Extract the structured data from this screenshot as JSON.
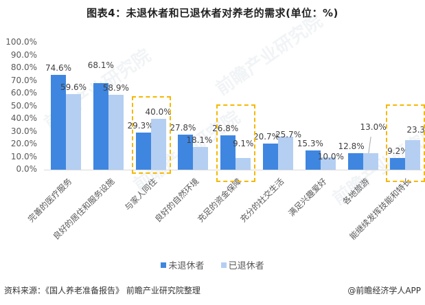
{
  "title": "图表4：未退休者和已退休者对养老的需求(单位：%)",
  "chart_data": {
    "type": "bar",
    "title": "图表4：未退休者和已退休者对养老的需求(单位：%)",
    "xlabel": "",
    "ylabel": "",
    "ylim": [
      0,
      100
    ],
    "yticks": [
      "0.0%",
      "10.0%",
      "20.0%",
      "30.0%",
      "40.0%",
      "50.0%",
      "60.0%",
      "70.0%",
      "80.0%",
      "90.0%",
      "100.0%"
    ],
    "grid": false,
    "legend_position": "bottom",
    "categories": [
      "完善的医疗服务",
      "良好的居住和服务设施",
      "与家人同住",
      "良好的自然环境",
      "充足的资金保障",
      "充分的社交生活",
      "满足兴趣爱好",
      "各地旅游",
      "能继续发挥技能和特长"
    ],
    "series": [
      {
        "name": "未退休者",
        "color": "#3f86e0",
        "values": [
          74.6,
          68.1,
          29.3,
          27.8,
          26.8,
          20.7,
          15.3,
          12.8,
          9.2
        ],
        "labels": [
          "74.6%",
          "68.1%",
          "29.3%",
          "27.8%",
          "26.8%",
          "20.7%",
          "15.3%",
          "12.8%",
          "9.2%"
        ]
      },
      {
        "name": "已退休者",
        "color": "#b4cff2",
        "values": [
          59.6,
          58.9,
          40.0,
          18.1,
          9.1,
          25.7,
          10.0,
          13.0,
          23.3
        ],
        "labels": [
          "59.6%",
          "58.9%",
          "40.0%",
          "18.1%",
          "9.1%",
          "25.7%",
          "10.0%",
          "13.0%",
          "23.3%"
        ]
      }
    ],
    "highlighted_categories": [
      "与家人同住",
      "充足的资金保障",
      "能继续发挥技能和特长"
    ],
    "highlight_color": "#f5b800"
  },
  "legend": {
    "items": [
      {
        "label": "未退休者",
        "color": "#3f86e0"
      },
      {
        "label": "已退休者",
        "color": "#b4cff2"
      }
    ]
  },
  "footer": {
    "source": "资料来源：《国人养老准备报告》 前瞻产业研究院整理",
    "credit": "@前瞻经济学人APP"
  },
  "watermark": "前瞻产业研究院"
}
